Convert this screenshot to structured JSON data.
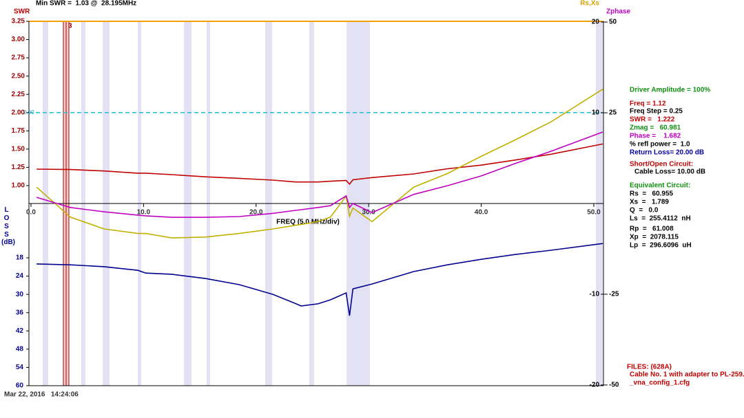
{
  "chart_data": {
    "type": "line",
    "title": "Min SWR =  1.03 @  28.195MHz",
    "timestamp": "Mar 22, 2016   14:24:06",
    "x_label": "FREQ (5.0 MHz/div)",
    "marker_label": "3",
    "x": [
      0.5,
      3.5,
      6.5,
      9.5,
      10.2,
      12.5,
      15.5,
      18.5,
      21.5,
      23.5,
      24,
      25.5,
      26.6,
      28.0,
      28.3,
      28.6,
      30.3,
      34,
      37,
      40,
      43,
      46.2,
      50.8
    ],
    "xlim": [
      -0.18,
      50.86
    ],
    "xticks": [
      {
        "value": 0,
        "label": "0.0"
      },
      {
        "value": 10,
        "label": "10.0"
      },
      {
        "value": 20,
        "label": "20.0"
      },
      {
        "value": 30,
        "label": "30.0"
      },
      {
        "value": 40,
        "label": "40.0"
      },
      {
        "value": 50,
        "label": "50.0"
      }
    ],
    "ylim": [
      -1.74,
      3.25
    ],
    "yticks": [
      {
        "value": 1,
        "label": "1.00"
      },
      1.25,
      {
        "value": 1.5,
        "label": "1.50"
      },
      1.75,
      {
        "value": 2,
        "label": "2.00"
      },
      2.25,
      {
        "value": 2.5,
        "label": "2.50"
      },
      2.75,
      {
        "value": 3,
        "label": "3.00"
      },
      3.25
    ],
    "y2lim": [
      -20.08,
      20.08
    ],
    "y2ticks": [
      -20,
      -10,
      10,
      20
    ],
    "y3lim": [
      60,
      -59.7
    ],
    "y3ticks": [
      18,
      24,
      30,
      36,
      42,
      48,
      54,
      60
    ],
    "y4lim": [
      -50.2,
      50.2
    ],
    "y4ticks": [
      -50,
      -25,
      25,
      50
    ],
    "swr_limit": {
      "value": 2,
      "label": "2.00"
    },
    "y3_unit": "(dB)",
    "series": [
      {
        "name": "SWR",
        "color": "#c00000",
        "axis": "y",
        "values": [
          1.226,
          1.22,
          1.2,
          1.17,
          1.17,
          1.15,
          1.12,
          1.1,
          1.075,
          1.05,
          1.05,
          1.05,
          1.06,
          1.07,
          1.02,
          1.08,
          1.11,
          1.16,
          1.23,
          1.28,
          1.35,
          1.43,
          1.57
        ]
      },
      {
        "name": "LOSS",
        "color": "#000090",
        "axis": "y3",
        "values": [
          20.0,
          20.3,
          20.9,
          22.1,
          23.0,
          23.4,
          24.8,
          26.8,
          30.0,
          33.0,
          33.8,
          33.1,
          31.8,
          29.5,
          37.0,
          28.2,
          26.6,
          22.5,
          20.3,
          18.5,
          16.9,
          15.5,
          13.3
        ]
      },
      {
        "name": "Rs,Xs",
        "color": "#c0b000",
        "axis": "y2",
        "values": [
          1.8,
          -1.5,
          -2.8,
          -3.3,
          -3.3,
          -3.8,
          -3.7,
          -3.3,
          -2.8,
          -2.4,
          -2.3,
          -2.0,
          -1.5,
          0.8,
          -1.4,
          -0.5,
          -2.0,
          1.8,
          3.3,
          5.2,
          7.0,
          9.0,
          12.6
        ]
      },
      {
        "name": "Zphase",
        "color": "#c000c0",
        "axis": "y4",
        "values": [
          1.7,
          -1.1,
          -2.3,
          -3.2,
          -3.4,
          -3.8,
          -3.8,
          -3.6,
          -2.7,
          -1.9,
          -1.7,
          -1.1,
          -0.6,
          2.1,
          -1.1,
          0,
          -2.5,
          2.5,
          4.9,
          7.6,
          11.0,
          14.4,
          19.7
        ]
      }
    ]
  },
  "info": [
    "Driver Amplitude = 100%",
    "Freq = 1.12",
    "Freq Step = 0.25",
    "SWR =   1.222",
    "Zmag =   60.981",
    "Phase =    1.682",
    "% refl power =  1.0",
    "Return Loss= 20.00 dB",
    "Short/Open Circuit:",
    "Cable Loss= 10.00 dB",
    "Equivalent Circuit:",
    "Rs  =   60.955",
    "Xs  =   1.789",
    "Q  =   0.0",
    "Ls  =  255.4112  nH",
    "Rp  =   61.008",
    "Xp  =  2078.115",
    "Lp  =  296.6096  uH"
  ],
  "files": [
    "FILES: (628A)",
    "Cable No. 1 with adapter to PL-259.vca",
    "_vna_config_1.cfg"
  ]
}
